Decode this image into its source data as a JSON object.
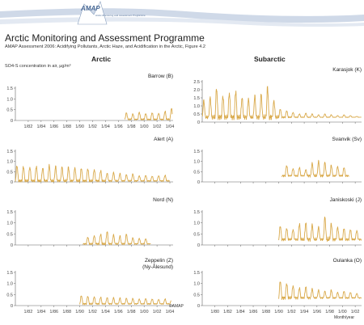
{
  "header": {
    "logo_text": "AMAP",
    "logo_tagline": "Arctic Monitoring and Assessment Programme",
    "title": "Arctic Monitoring and Assessment Programme",
    "subtitle": "AMAP Assessment 2006: Acidifying Pollutants, Arctic Haze, and Acidification in the Arctic, Figure 4.2"
  },
  "credit": "©AMAP",
  "x_unit_label": "Month/year",
  "colors": {
    "series": "#d9a94a",
    "axis": "#666666",
    "band": "#cfd9e8"
  },
  "chart_data": [
    {
      "type": "line",
      "column": "Arctic",
      "panel": "top",
      "title": "Barrow (B)",
      "ylabel": "SO4-S concentration in air, µg/m³",
      "ylim": [
        0,
        1.5
      ],
      "yticks": [
        0,
        0.5,
        1.0,
        1.5
      ],
      "ytick_labels": [
        "0",
        "0.5",
        "1.0",
        "1.5"
      ],
      "xlim": [
        1980,
        2004.5
      ],
      "xticks": [
        1982,
        1984,
        1986,
        1988,
        1990,
        1992,
        1994,
        1996,
        1998,
        2000,
        2002,
        2004
      ],
      "xtick_labels": [
        "1/82",
        "1/84",
        "1/86",
        "1/88",
        "1/90",
        "1/92",
        "1/94",
        "1/96",
        "1/98",
        "1/00",
        "1/02",
        "1/04"
      ],
      "series": [
        {
          "start": 1997.0,
          "end": 2004.4,
          "base": 0.05,
          "peaks": [
            0.35,
            0.3,
            0.38,
            0.32,
            0.36,
            0.33,
            0.42,
            0.55
          ]
        }
      ]
    },
    {
      "type": "line",
      "column": "Arctic",
      "title": "Alert (A)",
      "ylim": [
        0,
        1.5
      ],
      "yticks": [
        0,
        0.5,
        1.0,
        1.5
      ],
      "ytick_labels": [
        "0",
        "0.5",
        "1.0",
        "1.5"
      ],
      "xlim": [
        1980,
        2004.5
      ],
      "series": [
        {
          "start": 1980.0,
          "end": 2004.0,
          "base": 0.05,
          "peaks": [
            0.78,
            0.75,
            0.72,
            0.76,
            0.68,
            0.8,
            0.74,
            0.72,
            0.7,
            0.68,
            0.66,
            0.64,
            0.6,
            0.55,
            0.42,
            0.45,
            0.4,
            0.35,
            0.38,
            0.3,
            0.32,
            0.28,
            0.3,
            0.32
          ]
        }
      ]
    },
    {
      "type": "line",
      "column": "Arctic",
      "title": "Nord (N)",
      "ylim": [
        0,
        1.5
      ],
      "yticks": [
        0,
        0.5,
        1.0,
        1.5
      ],
      "ytick_labels": [
        "0",
        "0.5",
        "1.0",
        "1.5"
      ],
      "xlim": [
        1980,
        2004.5
      ],
      "series": [
        {
          "start": 1990.5,
          "end": 2001.0,
          "base": 0.05,
          "peaks": [
            0.35,
            0.42,
            0.48,
            0.6,
            0.45,
            0.4,
            0.48,
            0.32,
            0.3,
            0.28,
            0.2
          ]
        }
      ]
    },
    {
      "type": "line",
      "column": "Arctic",
      "panel": "bottom",
      "title": "Zeppelin (Z)",
      "title_line2": "(Ny-Ålesund)",
      "ylim": [
        0,
        1.5
      ],
      "yticks": [
        0,
        0.5,
        1.0,
        1.5
      ],
      "ytick_labels": [
        "0",
        "0.5",
        "1.0",
        "1.5"
      ],
      "xlim": [
        1980,
        2004.5
      ],
      "xticks": [
        1982,
        1984,
        1986,
        1988,
        1990,
        1992,
        1994,
        1996,
        1998,
        2000,
        2002,
        2004
      ],
      "xtick_labels": [
        "1/82",
        "1/84",
        "1/86",
        "1/88",
        "1/90",
        "1/92",
        "1/94",
        "1/96",
        "1/98",
        "1/00",
        "1/02",
        "1/04"
      ],
      "series": [
        {
          "start": 1990.0,
          "end": 2004.2,
          "base": 0.08,
          "peaks": [
            0.45,
            0.42,
            0.4,
            0.38,
            0.36,
            0.35,
            0.34,
            0.33,
            0.32,
            0.3,
            0.32,
            0.3,
            0.28,
            0.3,
            0.28
          ]
        }
      ]
    },
    {
      "type": "line",
      "column": "Subarctic",
      "panel": "top",
      "title": "Karasjok (K)",
      "ylim": [
        0,
        2.5
      ],
      "yticks": [
        0,
        0.5,
        1.0,
        1.5,
        2.0,
        2.5
      ],
      "ytick_labels": [
        "0",
        "0.5",
        "1.0",
        "1.5",
        "2.0",
        "2.5"
      ],
      "xlim": [
        1978,
        2003
      ],
      "series": [
        {
          "start": 1978.0,
          "end": 2003.0,
          "base": 0.3,
          "peaks": [
            1.3,
            1.5,
            2.05,
            1.6,
            1.8,
            1.9,
            1.5,
            1.4,
            1.6,
            1.7,
            2.1,
            1.3,
            0.8,
            0.7,
            0.6,
            0.5,
            0.55,
            0.5,
            0.45,
            0.5,
            0.45,
            0.4,
            0.45,
            0.4,
            0.35
          ]
        }
      ]
    },
    {
      "type": "line",
      "column": "Subarctic",
      "title": "Svanvik (Sv)",
      "ylim": [
        0,
        1.5
      ],
      "yticks": [
        0,
        0.5,
        1.0,
        1.5
      ],
      "ytick_labels": [
        "0",
        "0.5",
        "1.0",
        "1.5"
      ],
      "xlim": [
        1978,
        2003
      ],
      "series": [
        {
          "start": 1990.5,
          "end": 2001.0,
          "base": 0.3,
          "peaks": [
            0.8,
            0.65,
            0.7,
            0.6,
            0.9,
            1.0,
            0.95,
            0.8,
            0.75,
            0.7
          ]
        }
      ]
    },
    {
      "type": "line",
      "column": "Subarctic",
      "title": "Janiskoski (J)",
      "ylim": [
        0,
        1.5
      ],
      "yticks": [
        0,
        0.5,
        1.0,
        1.5
      ],
      "ytick_labels": [
        "0",
        "0.5",
        "1.0",
        "1.5"
      ],
      "xlim": [
        1978,
        2003
      ],
      "series": [
        {
          "start": 1990.0,
          "end": 2003.0,
          "base": 0.25,
          "peaks": [
            0.85,
            0.75,
            0.7,
            0.95,
            1.0,
            0.9,
            0.8,
            1.25,
            0.95,
            0.8,
            0.75,
            0.7,
            0.65
          ]
        }
      ]
    },
    {
      "type": "line",
      "column": "Subarctic",
      "panel": "bottom",
      "title": "Oulanka (O)",
      "ylim": [
        0,
        1.5
      ],
      "yticks": [
        0,
        0.5,
        1.0,
        1.5
      ],
      "ytick_labels": [
        "0",
        "0.5",
        "1.0",
        "1.5"
      ],
      "xlim": [
        1978,
        2003
      ],
      "xticks": [
        1980,
        1982,
        1984,
        1986,
        1988,
        1990,
        1992,
        1994,
        1996,
        1998,
        2000,
        2002
      ],
      "xtick_labels": [
        "1/80",
        "1/82",
        "1/84",
        "1/86",
        "1/88",
        "1/90",
        "1/92",
        "1/94",
        "1/96",
        "1/98",
        "1/00",
        "1/02"
      ],
      "series": [
        {
          "start": 1990.0,
          "end": 2003.0,
          "base": 0.35,
          "peaks": [
            1.1,
            1.0,
            0.9,
            0.8,
            0.85,
            0.75,
            0.7,
            0.65,
            0.7,
            0.6,
            0.65,
            0.6,
            0.55
          ]
        }
      ]
    }
  ],
  "columns": {
    "left": "Arctic",
    "right": "Subarctic"
  }
}
